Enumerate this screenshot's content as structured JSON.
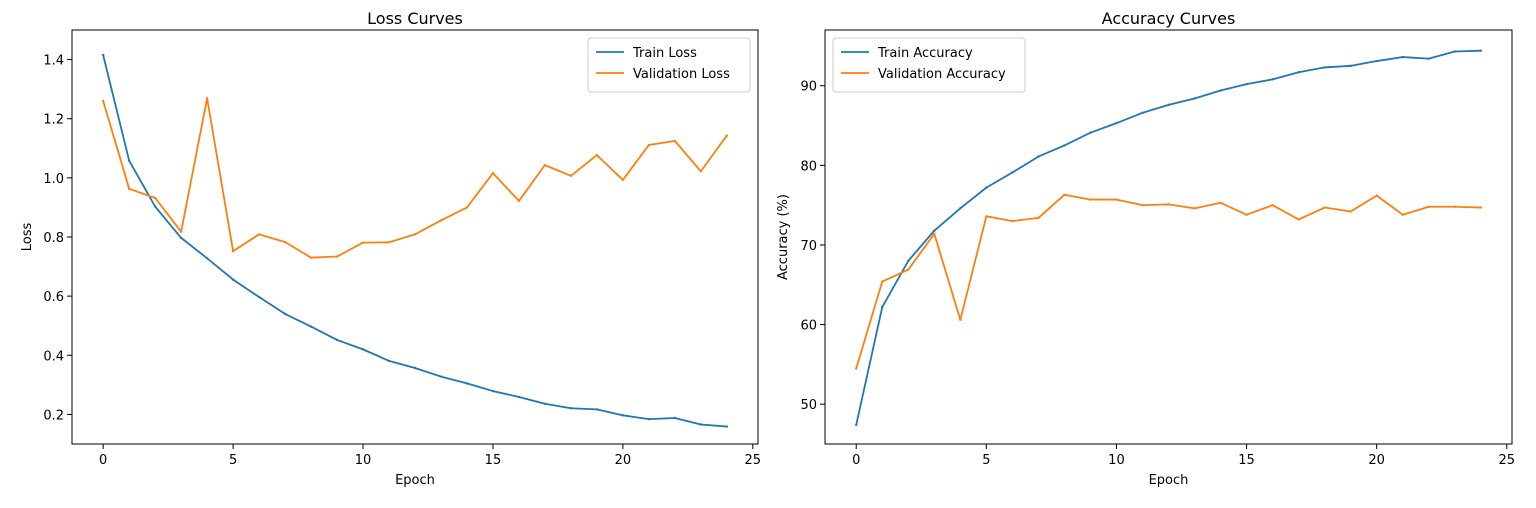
{
  "chart_data": [
    {
      "type": "line",
      "title": "Loss Curves",
      "xlabel": "Epoch",
      "ylabel": "Loss",
      "xlim": [
        -1.2,
        25.2
      ],
      "ylim": [
        0.1,
        1.5
      ],
      "xticks": [
        0,
        5,
        10,
        15,
        20,
        25
      ],
      "yticks": [
        0.2,
        0.4,
        0.6,
        0.8,
        1.0,
        1.2,
        1.4
      ],
      "ytick_labels": [
        "0.2",
        "0.4",
        "0.6",
        "0.8",
        "1.0",
        "1.2",
        "1.4"
      ],
      "grid": false,
      "legend": "upper right",
      "x": [
        0,
        1,
        2,
        3,
        4,
        5,
        6,
        7,
        8,
        9,
        10,
        11,
        12,
        13,
        14,
        15,
        16,
        17,
        18,
        19,
        20,
        21,
        22,
        23,
        24
      ],
      "series": [
        {
          "name": "Train Loss",
          "color": "#1f77b4",
          "values": [
            1.415,
            1.058,
            0.903,
            0.797,
            0.728,
            0.656,
            0.597,
            0.54,
            0.497,
            0.452,
            0.42,
            0.381,
            0.357,
            0.328,
            0.305,
            0.279,
            0.259,
            0.236,
            0.221,
            0.217,
            0.197,
            0.184,
            0.188,
            0.166,
            0.159
          ]
        },
        {
          "name": "Validation Loss",
          "color": "#ff7f0e",
          "values": [
            1.26,
            0.963,
            0.932,
            0.818,
            1.269,
            0.752,
            0.809,
            0.783,
            0.73,
            0.734,
            0.781,
            0.782,
            0.809,
            0.856,
            0.9,
            1.016,
            0.922,
            1.043,
            1.007,
            1.077,
            0.993,
            1.111,
            1.125,
            1.022,
            1.143
          ]
        }
      ]
    },
    {
      "type": "line",
      "title": "Accuracy Curves",
      "xlabel": "Epoch",
      "ylabel": "Accuracy (%)",
      "xlim": [
        -1.2,
        25.2
      ],
      "ylim": [
        45,
        97
      ],
      "xticks": [
        0,
        5,
        10,
        15,
        20,
        25
      ],
      "yticks": [
        50,
        60,
        70,
        80,
        90
      ],
      "ytick_labels": [
        "50",
        "60",
        "70",
        "80",
        "90"
      ],
      "grid": false,
      "legend": "upper left",
      "x": [
        0,
        1,
        2,
        3,
        4,
        5,
        6,
        7,
        8,
        9,
        10,
        11,
        12,
        13,
        14,
        15,
        16,
        17,
        18,
        19,
        20,
        21,
        22,
        23,
        24
      ],
      "series": [
        {
          "name": "Train Accuracy",
          "color": "#1f77b4",
          "values": [
            47.4,
            62.2,
            68.0,
            71.8,
            74.6,
            77.2,
            79.1,
            81.1,
            82.5,
            84.1,
            85.3,
            86.6,
            87.6,
            88.4,
            89.4,
            90.2,
            90.8,
            91.7,
            92.3,
            92.5,
            93.1,
            93.6,
            93.4,
            94.3,
            94.4
          ]
        },
        {
          "name": "Validation Accuracy",
          "color": "#ff7f0e",
          "values": [
            54.5,
            65.4,
            66.9,
            71.4,
            60.6,
            73.6,
            73.0,
            73.4,
            76.3,
            75.7,
            75.7,
            75.0,
            75.1,
            74.6,
            75.3,
            73.8,
            75.0,
            73.2,
            74.7,
            74.2,
            76.2,
            73.8,
            74.8,
            74.8,
            74.7
          ]
        }
      ]
    }
  ]
}
